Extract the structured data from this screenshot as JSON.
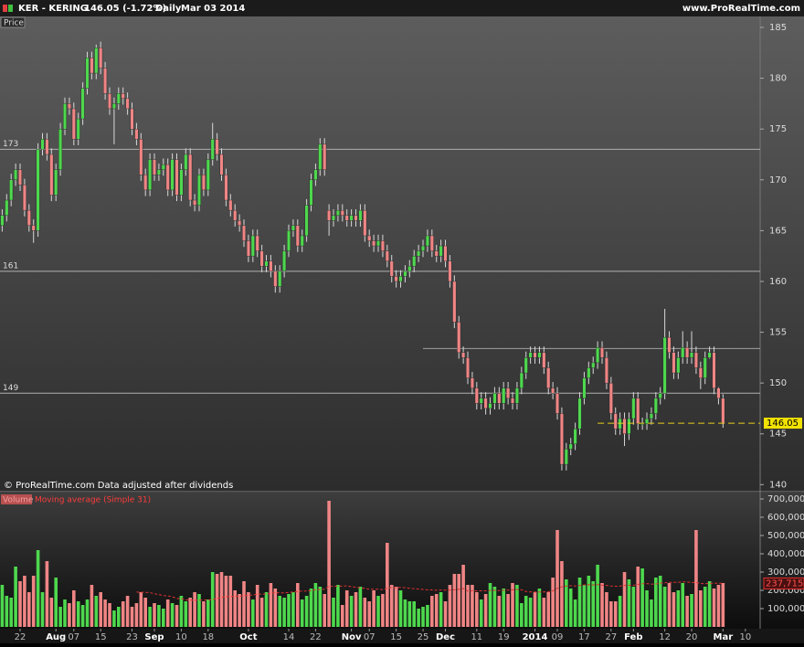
{
  "header": {
    "symbol": "KER - KERING",
    "quote": "146.05 (-1.72%)",
    "period": "Daily",
    "date": "Mar 03 2014",
    "site": "www.ProRealTime.com"
  },
  "chart_data": [
    {
      "type": "candlestick",
      "panel_label": "Price",
      "note": "© ProRealTime.com  Data adjusted after dividends",
      "up_color": "#4ed84e",
      "down_color": "#f08585",
      "xlim": [
        -0.49,
        169.3
      ],
      "ylim": [
        139.4,
        185.9
      ],
      "yticks": [
        140,
        145,
        150,
        155,
        160,
        165,
        170,
        175,
        180,
        185
      ],
      "levels": [
        173,
        161,
        149
      ],
      "partial_level": {
        "value": 153.4,
        "from": 94
      },
      "last_price_from": 133,
      "candles": {
        "open": [
          165.5,
          166.5,
          168,
          170,
          171,
          169.5,
          167,
          165.5,
          165,
          173,
          174,
          172.5,
          168.5,
          171,
          175,
          177.5,
          177,
          174,
          176,
          179,
          182,
          180.5,
          183,
          181,
          178.5,
          177,
          177.5,
          178.5,
          178,
          177,
          175,
          174,
          170.5,
          169,
          172,
          170.5,
          171,
          171.5,
          169,
          172,
          168.5,
          171,
          172.5,
          168,
          167.5,
          170.5,
          169,
          172,
          174,
          172.5,
          170.5,
          168,
          167,
          166,
          165.5,
          164,
          162.5,
          164.5,
          163,
          161.5,
          162,
          161,
          159.5,
          161,
          163,
          165,
          165.5,
          163.5,
          164.5,
          167.5,
          170,
          171,
          173.5,
          167,
          166,
          166.5,
          167,
          166.5,
          166,
          166.5,
          166,
          167,
          164.5,
          164,
          163.5,
          164,
          163,
          162,
          160.5,
          160,
          160.5,
          161,
          161.5,
          162.5,
          163,
          163.5,
          164.5,
          163,
          162.5,
          163.5,
          162,
          160,
          156,
          153,
          152.5,
          150.5,
          149.5,
          148,
          148.5,
          147.5,
          148,
          149,
          148,
          149.5,
          148.5,
          148,
          149.5,
          151,
          152.5,
          153,
          152.5,
          153,
          151.5,
          149.5,
          149,
          147,
          142,
          143.5,
          144,
          145.5,
          148.5,
          150.5,
          151.5,
          152,
          153.5,
          152.5,
          150,
          147,
          145.5,
          146.5,
          145,
          146.5,
          148.5,
          146,
          146,
          146.5,
          147,
          148.5,
          149,
          154.5,
          153,
          151,
          152.5,
          153.5,
          152.5,
          153,
          151.5,
          150.5,
          152.5,
          153,
          149.5,
          148.5
        ],
        "high": [
          167.1,
          168.6,
          170.6,
          171.6,
          171.6,
          170.1,
          167.6,
          166.1,
          173.6,
          174.6,
          174.6,
          173.1,
          171.6,
          175.6,
          178.1,
          178.1,
          177.6,
          176.6,
          179.6,
          182.6,
          182.6,
          183.3,
          183.6,
          181.6,
          179.1,
          178.1,
          179.1,
          179.1,
          178.6,
          177.6,
          175.6,
          174.6,
          171.1,
          172.6,
          172.6,
          171.6,
          172.1,
          172.1,
          172.6,
          172.6,
          171.6,
          173.1,
          173.1,
          168.6,
          171.1,
          171.1,
          172.6,
          175.6,
          174.6,
          173.1,
          171.1,
          168.6,
          167.6,
          166.6,
          166.1,
          164.6,
          165.1,
          165.1,
          163.6,
          162.6,
          162.6,
          161.6,
          161.6,
          163.6,
          165.6,
          166.1,
          166.1,
          165.1,
          168.1,
          170.6,
          171.6,
          174.1,
          174.1,
          167.6,
          167.1,
          167.6,
          167.6,
          167.1,
          167.1,
          167.1,
          167.6,
          167.6,
          165.1,
          164.6,
          164.6,
          164.6,
          163.6,
          162.6,
          161.1,
          161.1,
          161.6,
          162.1,
          163.1,
          163.6,
          164.1,
          165.1,
          165.1,
          163.6,
          164.1,
          164.1,
          162.6,
          160.6,
          156.6,
          153.6,
          153.1,
          151.1,
          150.1,
          149.1,
          149.1,
          148.6,
          149.6,
          149.6,
          150.1,
          150.1,
          149.1,
          150.1,
          151.6,
          153.1,
          153.6,
          153.6,
          153.6,
          153.6,
          152.1,
          150.1,
          149.6,
          147.6,
          144.1,
          144.6,
          146.1,
          149.1,
          151.1,
          152.1,
          152.6,
          154.1,
          154.1,
          153.1,
          150.6,
          147.6,
          147.1,
          147.1,
          147.1,
          149.1,
          149.1,
          146.6,
          147.1,
          147.6,
          149.1,
          149.6,
          157.3,
          155.1,
          153.6,
          153.1,
          155.1,
          154.1,
          155.1,
          153.6,
          152.1,
          153.1,
          153.6,
          153.6,
          149.6,
          148.9
        ],
        "low": [
          164.9,
          165.9,
          167.4,
          169.4,
          168.9,
          166.4,
          164.9,
          163.8,
          164.4,
          172.4,
          171.9,
          167.9,
          167.9,
          170.4,
          174.4,
          176.4,
          173.4,
          173.4,
          175.4,
          178.4,
          179.9,
          179.9,
          180.4,
          177.9,
          176.4,
          173.5,
          176.9,
          177.4,
          176.4,
          174.4,
          173.4,
          169.9,
          168.4,
          168.4,
          169.9,
          169.9,
          170.4,
          168.4,
          168.4,
          167.9,
          167.9,
          170.4,
          167.4,
          166.9,
          166.9,
          168.4,
          168.4,
          171.4,
          171.9,
          169.9,
          167.4,
          166.4,
          165.4,
          164.9,
          163.4,
          161.9,
          161.9,
          162.4,
          160.9,
          160.9,
          160.4,
          158.9,
          158.9,
          160.4,
          162.4,
          164.4,
          162.9,
          162.9,
          163.9,
          166.9,
          169.4,
          170.4,
          170.4,
          164.5,
          165.4,
          165.9,
          165.9,
          165.4,
          165.4,
          165.4,
          165.4,
          163.9,
          163.4,
          162.9,
          162.9,
          162.4,
          161.4,
          159.9,
          159.4,
          159.4,
          159.9,
          160.4,
          160.9,
          161.9,
          162.4,
          162.9,
          162.4,
          161.9,
          161.9,
          161.4,
          159.4,
          155.4,
          152.4,
          151.9,
          149.9,
          148.9,
          147.4,
          147.4,
          146.9,
          146.9,
          147.4,
          147.4,
          147.4,
          147.9,
          147.4,
          147.4,
          148.9,
          150.4,
          151.9,
          151.9,
          151.9,
          150.9,
          148.9,
          148.4,
          146.4,
          141.4,
          141.4,
          142.9,
          143.4,
          144.9,
          147.9,
          149.9,
          150.9,
          151.4,
          151.9,
          149.4,
          146.4,
          144.9,
          144.9,
          143.8,
          144.4,
          145.9,
          145.4,
          145.4,
          145.4,
          145.9,
          146.4,
          147.9,
          148.4,
          152.4,
          150.4,
          150.4,
          151.9,
          151.9,
          151.9,
          150.9,
          149.4,
          149.9,
          152.4,
          148.9,
          147.9,
          145.6
        ],
        "close": [
          166.5,
          168,
          170,
          171,
          169.5,
          167,
          165.5,
          165,
          173,
          174,
          172.5,
          168.5,
          171,
          175,
          177.5,
          177,
          174,
          176,
          179,
          182,
          180.5,
          183,
          181,
          178.5,
          177,
          177.5,
          178.5,
          178,
          177,
          175,
          174,
          170.5,
          169,
          172,
          170.5,
          171,
          171.5,
          169,
          172,
          168.5,
          171,
          172.5,
          168,
          167.5,
          170.5,
          169,
          172,
          174,
          172.5,
          170.5,
          168,
          167,
          166,
          165.5,
          164,
          162.5,
          164.5,
          163,
          161.5,
          162,
          161,
          159.5,
          161,
          163,
          165,
          165.5,
          163.5,
          164.5,
          167.5,
          170,
          171,
          173.5,
          171,
          166,
          166.5,
          167,
          166.5,
          166,
          166.5,
          166,
          167,
          164.5,
          164,
          163.5,
          164,
          163,
          162,
          160.5,
          160,
          160.5,
          161,
          161.5,
          162.5,
          163,
          163.5,
          164.5,
          163,
          162.5,
          163.5,
          162,
          160,
          156,
          153,
          152.5,
          150.5,
          149.5,
          148,
          148.5,
          147.5,
          148,
          149,
          148,
          149.5,
          148.5,
          148,
          149.5,
          151,
          152.5,
          153,
          152.5,
          153,
          151.5,
          149.5,
          149,
          147,
          142,
          143.5,
          144,
          145.5,
          148.5,
          150.5,
          151.5,
          152,
          153.5,
          152.5,
          150,
          147,
          145.5,
          146.5,
          145,
          146.5,
          148.5,
          146,
          146,
          146.5,
          147,
          148.5,
          149,
          154.5,
          153,
          151,
          152.5,
          153.5,
          152.5,
          153,
          151.5,
          150.5,
          152.5,
          153,
          149.5,
          148.5,
          146.05
        ]
      }
    },
    {
      "type": "bar",
      "name": "Volume",
      "ma_name": "Moving average (Simple 31)",
      "ma_color": "#e03030",
      "ma_last": {
        "value": 237715,
        "label": "237,715"
      },
      "xlim": [
        -0.49,
        169.3
      ],
      "ylim": [
        0,
        730000
      ],
      "yticks": [
        {
          "value": 100000,
          "label": "100,000"
        },
        {
          "value": 200000,
          "label": "200,000"
        },
        {
          "value": 300000,
          "label": "300,000"
        },
        {
          "value": 400000,
          "label": "400,000"
        },
        {
          "value": 500000,
          "label": "500,000"
        },
        {
          "value": 600000,
          "label": "600,000"
        },
        {
          "value": 700000,
          "label": "700,000"
        }
      ],
      "xticks": [
        {
          "value": 4,
          "label": "22"
        },
        {
          "value": 12,
          "label": "Aug"
        },
        {
          "value": 16,
          "label": "07"
        },
        {
          "value": 22,
          "label": "15"
        },
        {
          "value": 29,
          "label": "23"
        },
        {
          "value": 34,
          "label": "Sep"
        },
        {
          "value": 40,
          "label": "10"
        },
        {
          "value": 46,
          "label": "18"
        },
        {
          "value": 55,
          "label": "Oct"
        },
        {
          "value": 64,
          "label": "14"
        },
        {
          "value": 70,
          "label": "22"
        },
        {
          "value": 78,
          "label": "Nov"
        },
        {
          "value": 82,
          "label": "07"
        },
        {
          "value": 88,
          "label": "15"
        },
        {
          "value": 94,
          "label": "25"
        },
        {
          "value": 99,
          "label": "Dec"
        },
        {
          "value": 106,
          "label": "11"
        },
        {
          "value": 112,
          "label": "19"
        },
        {
          "value": 119,
          "label": "2014"
        },
        {
          "value": 124,
          "label": "09"
        },
        {
          "value": 130,
          "label": "17"
        },
        {
          "value": 136,
          "label": "27"
        },
        {
          "value": 141,
          "label": "Feb"
        },
        {
          "value": 148,
          "label": "12"
        },
        {
          "value": 154,
          "label": "20"
        },
        {
          "value": 161,
          "label": "Mar"
        },
        {
          "value": 166,
          "label": "10"
        }
      ],
      "values": [
        230000,
        170000,
        160000,
        330000,
        250000,
        280000,
        190000,
        280000,
        420000,
        190000,
        360000,
        160000,
        270000,
        110000,
        150000,
        130000,
        200000,
        140000,
        120000,
        150000,
        230000,
        170000,
        190000,
        150000,
        130000,
        90000,
        110000,
        140000,
        170000,
        110000,
        130000,
        190000,
        160000,
        110000,
        130000,
        120000,
        100000,
        150000,
        130000,
        120000,
        170000,
        140000,
        160000,
        190000,
        180000,
        140000,
        150000,
        300000,
        290000,
        300000,
        280000,
        280000,
        200000,
        180000,
        250000,
        190000,
        150000,
        230000,
        160000,
        190000,
        240000,
        210000,
        170000,
        160000,
        180000,
        190000,
        240000,
        150000,
        170000,
        210000,
        240000,
        220000,
        180000,
        690000,
        160000,
        230000,
        120000,
        200000,
        170000,
        190000,
        220000,
        160000,
        140000,
        200000,
        170000,
        180000,
        460000,
        230000,
        220000,
        200000,
        150000,
        140000,
        140000,
        100000,
        110000,
        120000,
        170000,
        180000,
        190000,
        140000,
        230000,
        290000,
        290000,
        340000,
        230000,
        230000,
        190000,
        150000,
        180000,
        240000,
        220000,
        170000,
        210000,
        180000,
        240000,
        230000,
        130000,
        170000,
        160000,
        190000,
        210000,
        160000,
        190000,
        270000,
        530000,
        360000,
        260000,
        210000,
        150000,
        270000,
        230000,
        280000,
        250000,
        340000,
        240000,
        190000,
        140000,
        140000,
        170000,
        300000,
        260000,
        220000,
        330000,
        320000,
        200000,
        150000,
        270000,
        280000,
        220000,
        240000,
        190000,
        200000,
        240000,
        170000,
        180000,
        530000,
        200000,
        220000,
        250000,
        210000,
        230000,
        240000
      ]
    }
  ]
}
